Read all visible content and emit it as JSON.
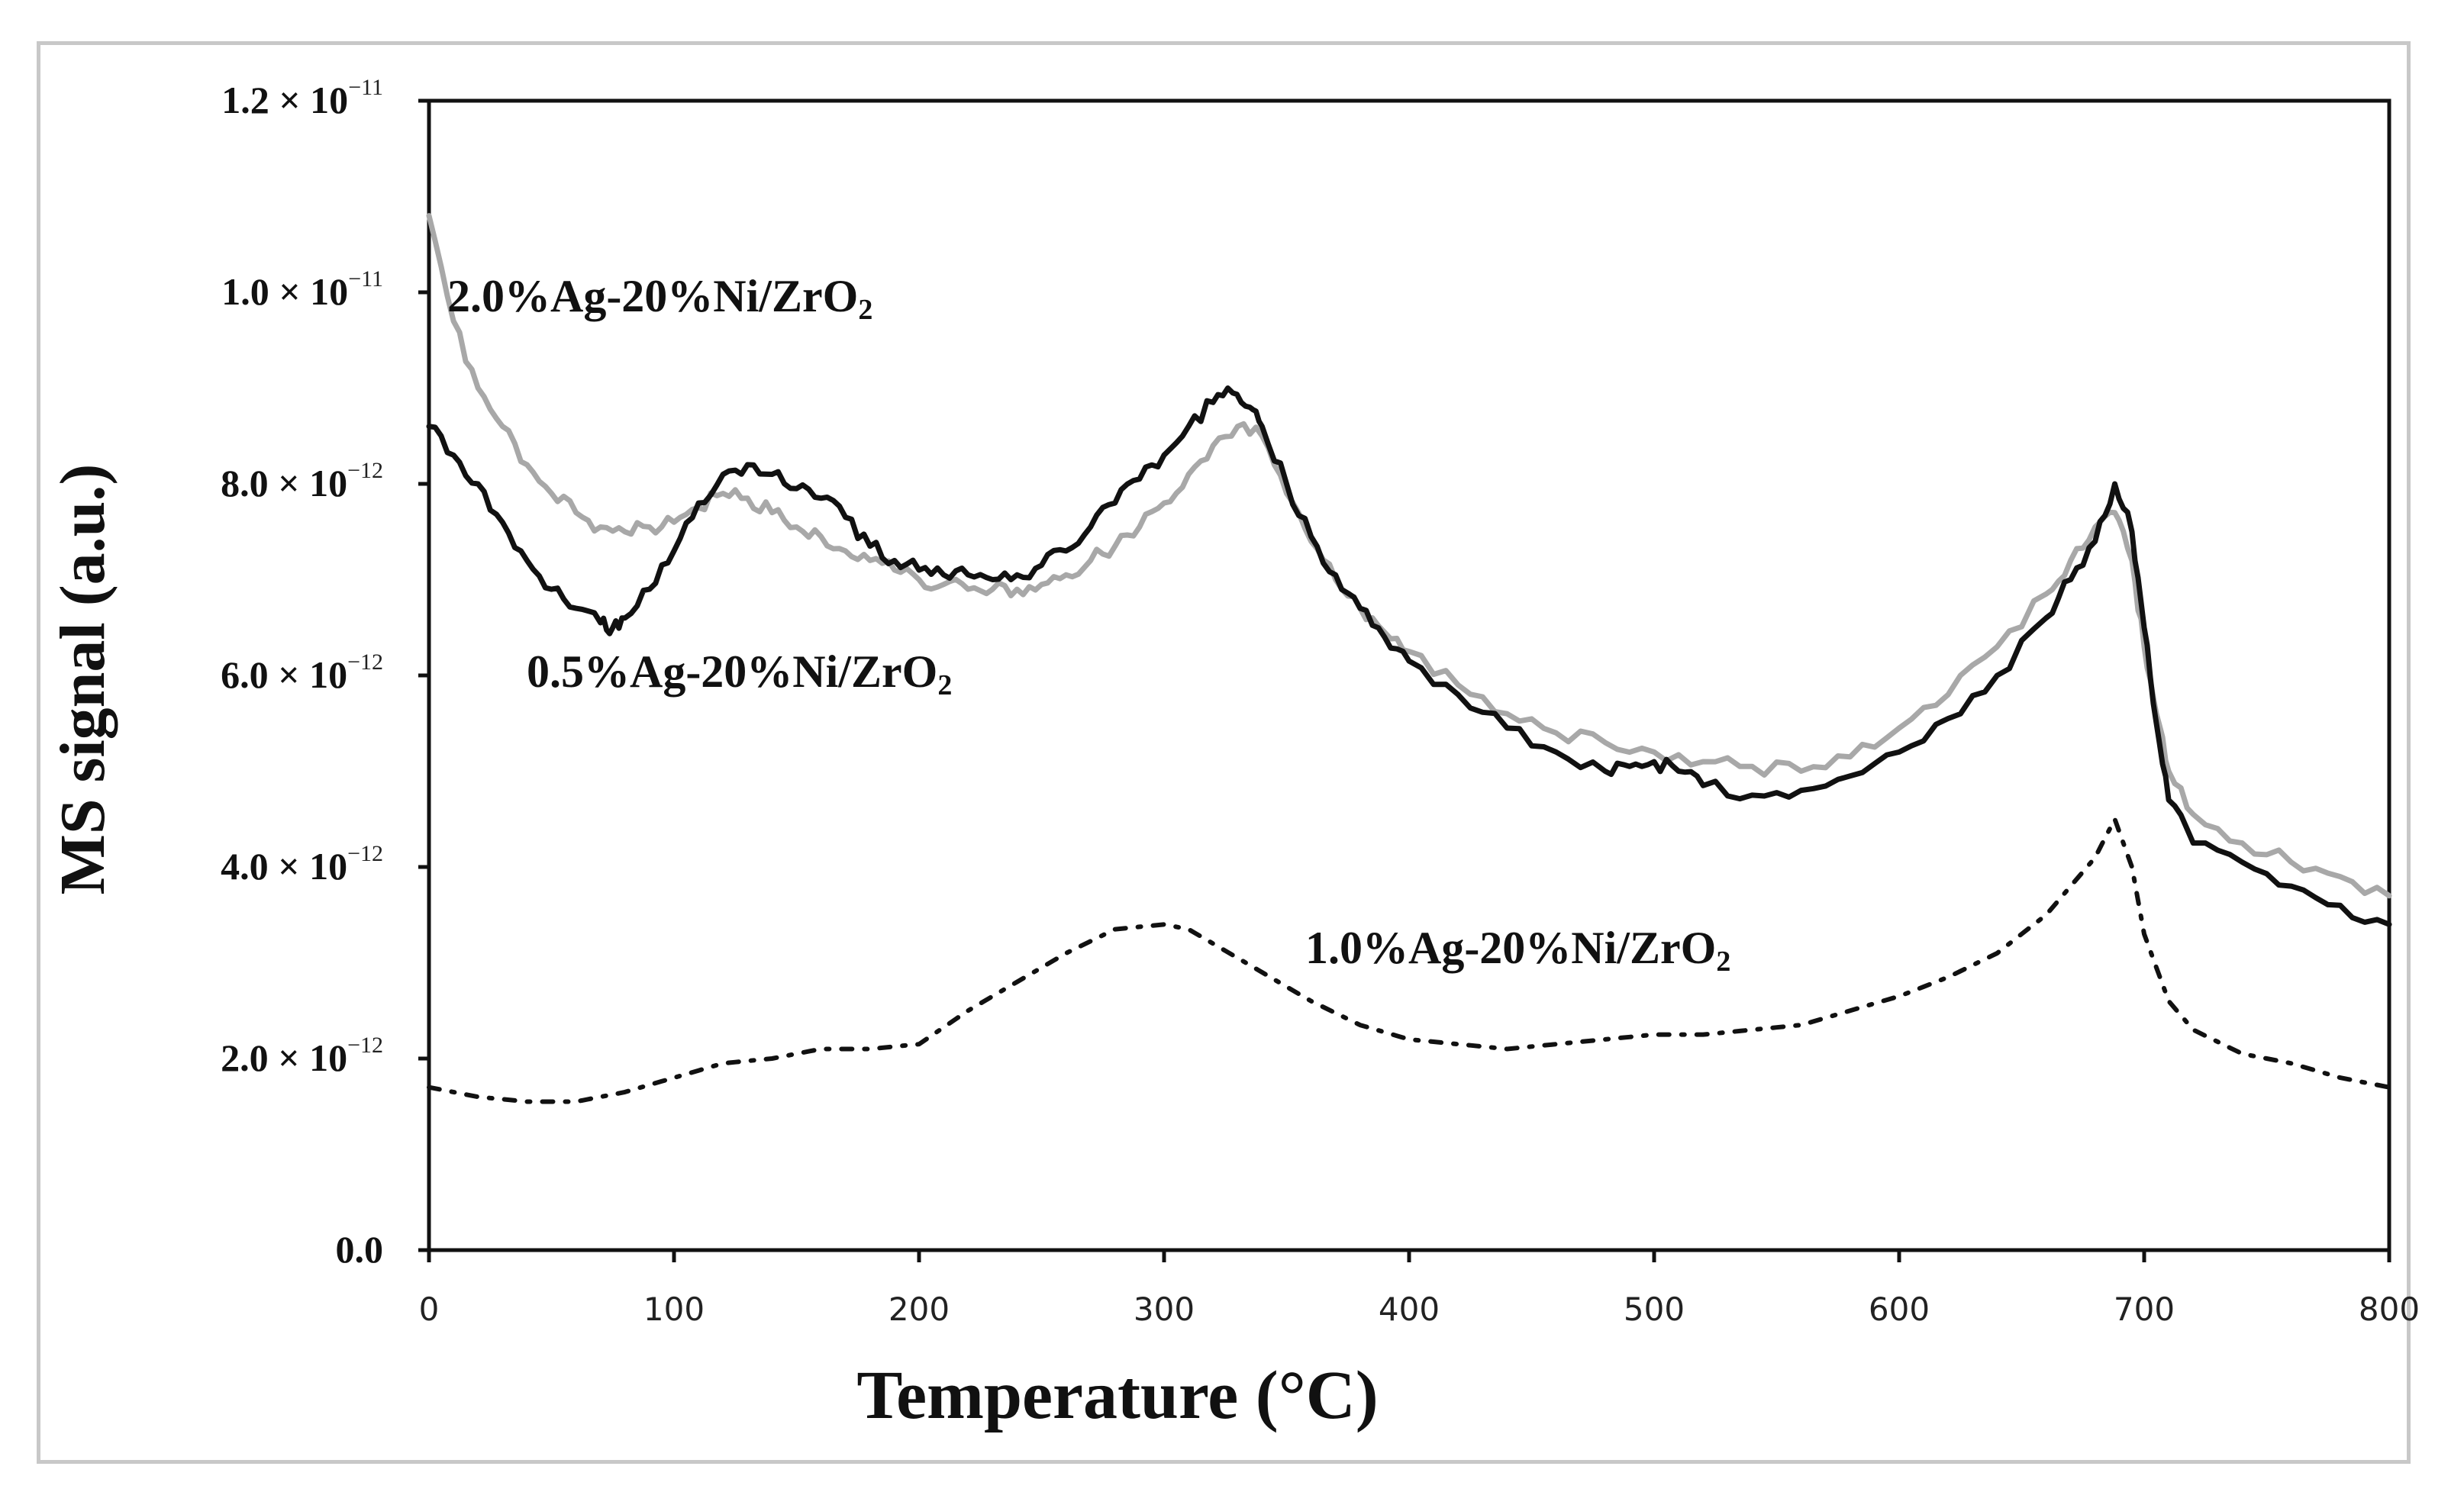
{
  "chart_data": {
    "type": "line",
    "xlabel": "Temperature (°C)",
    "ylabel": "MS signal (a.u.)",
    "xlim": [
      0,
      800
    ],
    "ylim": [
      0,
      1.2e-11
    ],
    "x_ticks": [
      {
        "value": 0,
        "label": "0"
      },
      {
        "value": 100,
        "label": "100"
      },
      {
        "value": 200,
        "label": "200"
      },
      {
        "value": 300,
        "label": "300"
      },
      {
        "value": 400,
        "label": "400"
      },
      {
        "value": 500,
        "label": "500"
      },
      {
        "value": 600,
        "label": "600"
      },
      {
        "value": 700,
        "label": "700"
      },
      {
        "value": 800,
        "label": "800"
      }
    ],
    "y_ticks": [
      {
        "value": 0,
        "mantissa": "0.0",
        "exponent": ""
      },
      {
        "value": 2e-12,
        "mantissa": "2.0 × 10",
        "exponent": "−12"
      },
      {
        "value": 4e-12,
        "mantissa": "4.0 × 10",
        "exponent": "−12"
      },
      {
        "value": 6e-12,
        "mantissa": "6.0 × 10",
        "exponent": "−12"
      },
      {
        "value": 8e-12,
        "mantissa": "8.0 × 10",
        "exponent": "−12"
      },
      {
        "value": 1e-11,
        "mantissa": "1.0 × 10",
        "exponent": "−11"
      },
      {
        "value": 1.2e-11,
        "mantissa": "1.2 × 10",
        "exponent": "−11"
      }
    ],
    "series": [
      {
        "name": "2.0%Ag-20%Ni/ZrO2",
        "label_main": "2.0%Ag-20%Ni/ZrO",
        "label_sub": "2",
        "color": "#a8a8a8",
        "style": "solid",
        "x": [
          0,
          10,
          20,
          30,
          40,
          50,
          60,
          70,
          80,
          90,
          100,
          110,
          120,
          130,
          140,
          150,
          160,
          170,
          180,
          190,
          200,
          210,
          220,
          230,
          240,
          250,
          260,
          270,
          280,
          290,
          300,
          310,
          320,
          330,
          340,
          350,
          360,
          370,
          380,
          390,
          400,
          420,
          440,
          460,
          480,
          500,
          520,
          540,
          560,
          580,
          600,
          620,
          640,
          660,
          670,
          680,
          688,
          695,
          700,
          705,
          710,
          720,
          740,
          760,
          780,
          800
        ],
        "y": [
          10.8,
          9.7,
          9.0,
          8.6,
          8.2,
          7.9,
          7.7,
          7.55,
          7.5,
          7.55,
          7.6,
          7.75,
          7.9,
          7.85,
          7.7,
          7.55,
          7.45,
          7.3,
          7.2,
          7.1,
          7.0,
          6.95,
          6.9,
          6.9,
          6.9,
          6.95,
          7.05,
          7.2,
          7.35,
          7.55,
          7.8,
          8.1,
          8.4,
          8.6,
          8.5,
          7.9,
          7.4,
          7.0,
          6.7,
          6.45,
          6.25,
          5.9,
          5.6,
          5.4,
          5.3,
          5.2,
          5.1,
          5.05,
          5.0,
          5.15,
          5.45,
          5.8,
          6.3,
          6.85,
          7.2,
          7.55,
          7.7,
          7.2,
          6.3,
          5.6,
          5.0,
          4.55,
          4.25,
          4.05,
          3.9,
          3.7
        ],
        "unit_scale": 1e-12
      },
      {
        "name": "0.5%Ag-20%Ni/ZrO2",
        "label_main": "0.5%Ag-20%Ni/ZrO",
        "label_sub": "2",
        "color": "#111111",
        "style": "solid",
        "x": [
          0,
          10,
          20,
          30,
          40,
          50,
          60,
          70,
          75,
          80,
          90,
          100,
          110,
          120,
          130,
          140,
          150,
          160,
          170,
          180,
          190,
          200,
          210,
          220,
          230,
          240,
          250,
          260,
          270,
          280,
          290,
          300,
          310,
          320,
          328,
          335,
          340,
          350,
          360,
          370,
          380,
          390,
          400,
          420,
          440,
          460,
          480,
          490,
          500,
          510,
          520,
          540,
          560,
          580,
          600,
          620,
          640,
          660,
          670,
          680,
          688,
          695,
          700,
          705,
          710,
          720,
          740,
          760,
          780,
          800
        ],
        "y": [
          8.6,
          8.3,
          8.0,
          7.6,
          7.2,
          6.9,
          6.7,
          6.55,
          6.5,
          6.6,
          6.9,
          7.3,
          7.8,
          8.1,
          8.2,
          8.1,
          7.95,
          7.85,
          7.65,
          7.35,
          7.2,
          7.1,
          7.05,
          7.05,
          7.0,
          7.05,
          7.15,
          7.3,
          7.55,
          7.8,
          8.05,
          8.3,
          8.6,
          8.85,
          8.95,
          8.8,
          8.6,
          8.0,
          7.45,
          7.05,
          6.7,
          6.4,
          6.15,
          5.8,
          5.45,
          5.2,
          5.0,
          5.05,
          5.1,
          5.0,
          4.85,
          4.75,
          4.8,
          4.95,
          5.2,
          5.55,
          6.0,
          6.6,
          7.0,
          7.4,
          8.0,
          7.5,
          6.5,
          5.5,
          4.7,
          4.25,
          4.05,
          3.8,
          3.6,
          3.4
        ],
        "unit_scale": 1e-12
      },
      {
        "name": "1.0%Ag-20%Ni/ZrO2",
        "label_main": "1.0%Ag-20%Ni/ZrO",
        "label_sub": "2",
        "color": "#111111",
        "style": "dashdot",
        "x": [
          0,
          20,
          40,
          60,
          80,
          100,
          120,
          140,
          160,
          180,
          200,
          220,
          240,
          260,
          280,
          300,
          310,
          320,
          340,
          360,
          380,
          400,
          420,
          440,
          460,
          480,
          500,
          520,
          540,
          560,
          580,
          600,
          620,
          640,
          660,
          680,
          688,
          695,
          700,
          710,
          720,
          740,
          760,
          780,
          800
        ],
        "y": [
          1.7,
          1.6,
          1.55,
          1.55,
          1.65,
          1.8,
          1.95,
          2.0,
          2.1,
          2.1,
          2.15,
          2.5,
          2.8,
          3.1,
          3.35,
          3.4,
          3.35,
          3.2,
          2.9,
          2.6,
          2.35,
          2.2,
          2.15,
          2.1,
          2.15,
          2.2,
          2.25,
          2.25,
          2.3,
          2.35,
          2.5,
          2.65,
          2.85,
          3.1,
          3.5,
          4.1,
          4.5,
          4.0,
          3.3,
          2.6,
          2.3,
          2.05,
          1.95,
          1.8,
          1.7
        ],
        "unit_scale": 1e-12
      }
    ]
  }
}
